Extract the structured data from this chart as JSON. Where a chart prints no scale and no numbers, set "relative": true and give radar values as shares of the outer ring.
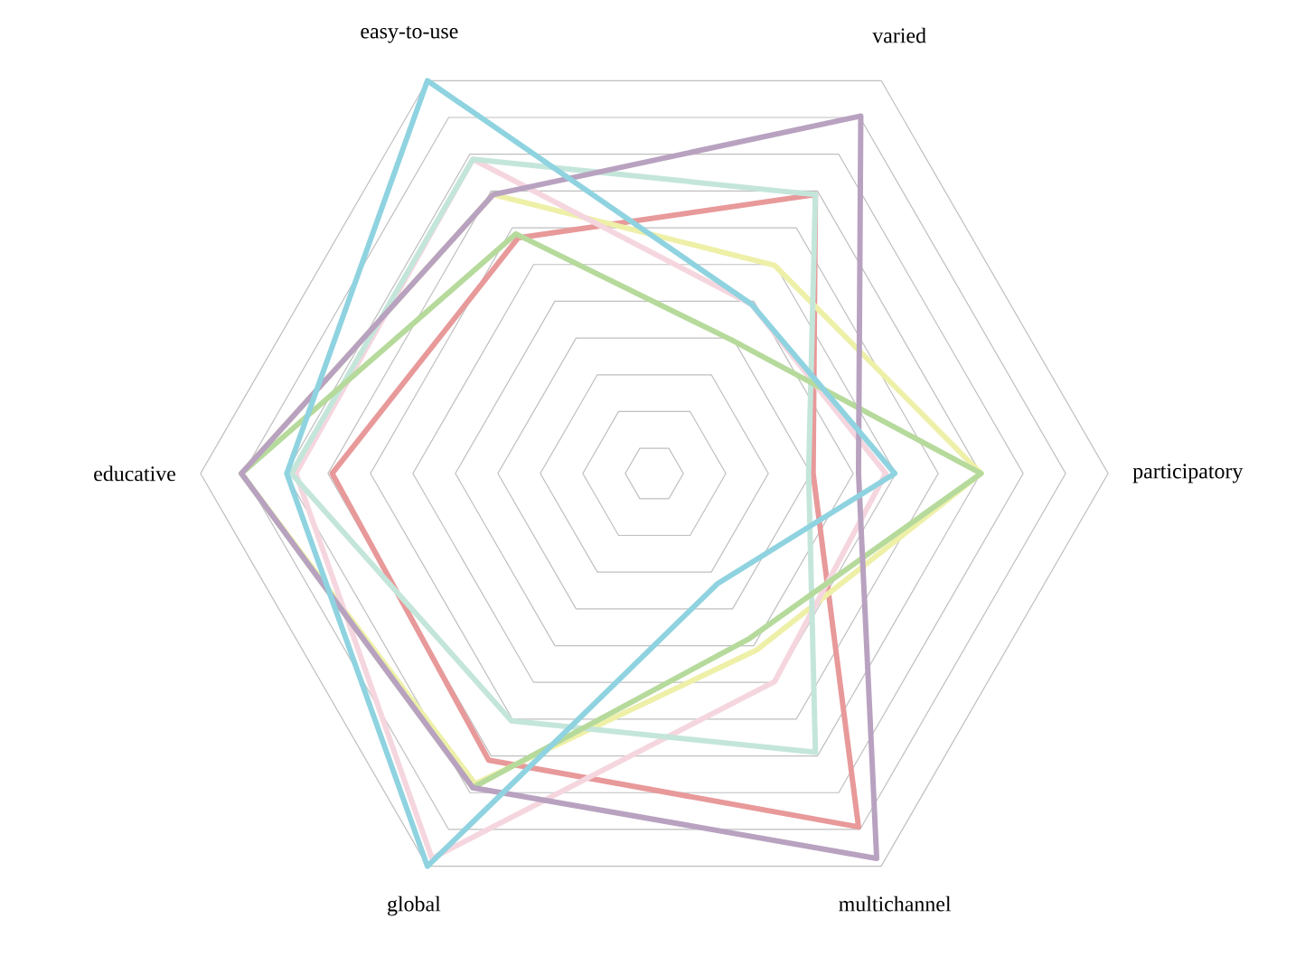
{
  "chart_data": {
    "type": "radar",
    "relative": true,
    "categories": [
      "varied",
      "participatory",
      "multichannel",
      "global",
      "educative",
      "easy-to-use"
    ],
    "series": [
      {
        "color": "#e8999a",
        "values": [
          0.71,
          0.35,
          0.9,
          0.73,
          0.71,
          0.6
        ]
      },
      {
        "color": "#eef0a8",
        "values": [
          0.53,
          0.72,
          0.45,
          0.79,
          0.91,
          0.71
        ]
      },
      {
        "color": "#f5d6df",
        "values": [
          0.43,
          0.51,
          0.53,
          0.98,
          0.79,
          0.8
        ]
      },
      {
        "color": "#c4e6da",
        "values": [
          0.71,
          0.34,
          0.71,
          0.63,
          0.8,
          0.8
        ]
      },
      {
        "color": "#b6da9b",
        "values": [
          0.34,
          0.72,
          0.42,
          0.8,
          0.91,
          0.61
        ]
      },
      {
        "color": "#b8a2c0",
        "values": [
          0.91,
          0.45,
          0.98,
          0.8,
          0.91,
          0.71
        ]
      },
      {
        "color": "#8fd3e0",
        "values": [
          0.43,
          0.53,
          0.28,
          1.0,
          0.81,
          1.0
        ]
      }
    ]
  }
}
